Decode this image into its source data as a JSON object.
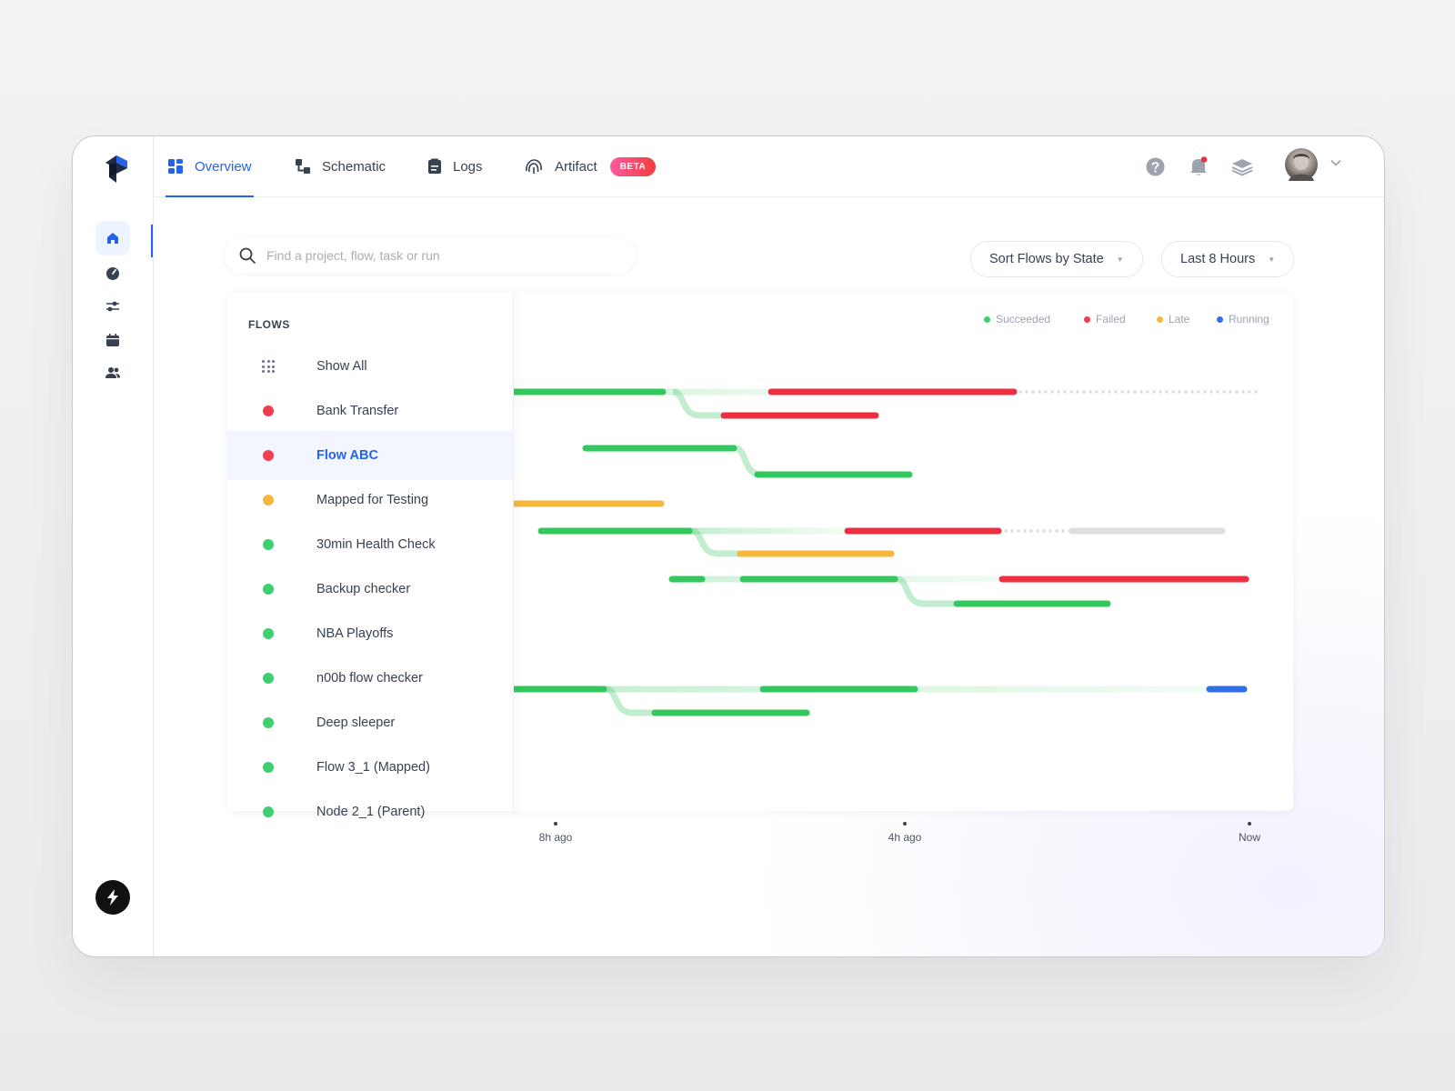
{
  "nav": {
    "tabs": [
      {
        "label": "Overview",
        "icon": "dashboard-icon",
        "active": true
      },
      {
        "label": "Schematic",
        "icon": "schematic-icon"
      },
      {
        "label": "Logs",
        "icon": "logs-icon"
      },
      {
        "label": "Artifact",
        "icon": "fingerprint-icon",
        "badge": "BETA"
      }
    ],
    "rail": [
      "home-icon",
      "speedometer-icon",
      "sliders-icon",
      "calendar-icon",
      "team-icon"
    ]
  },
  "search": {
    "placeholder": "Find a project, flow, task or run"
  },
  "filters": {
    "sort": "Sort Flows by State",
    "range": "Last 8 Hours"
  },
  "flows": {
    "title": "FLOWS",
    "items": [
      {
        "label": "Show All",
        "state": "all"
      },
      {
        "label": "Bank Transfer",
        "state": "failed"
      },
      {
        "label": "Flow ABC",
        "state": "failed",
        "selected": true
      },
      {
        "label": "Mapped for Testing",
        "state": "late"
      },
      {
        "label": "30min Health Check",
        "state": "succeeded"
      },
      {
        "label": "Backup checker",
        "state": "succeeded"
      },
      {
        "label": "NBA Playoffs",
        "state": "succeeded"
      },
      {
        "label": "n00b flow checker",
        "state": "succeeded"
      },
      {
        "label": "Deep sleeper",
        "state": "succeeded"
      },
      {
        "label": "Flow 3_1 (Mapped)",
        "state": "succeeded"
      },
      {
        "label": "Node 2_1 (Parent)",
        "state": "succeeded"
      }
    ]
  },
  "legend": [
    {
      "label": "Succeeded",
      "color": "#3ecf6e"
    },
    {
      "label": "Failed",
      "color": "#f03e4f"
    },
    {
      "label": "Late",
      "color": "#f7b63c"
    },
    {
      "label": "Running",
      "color": "#2f6fe8"
    }
  ],
  "timeline": {
    "ticks": [
      "8h ago",
      "4h ago",
      "Now"
    ],
    "colors": {
      "succeeded": "#34c75f",
      "failed": "#ee2f41",
      "late": "#f6b73c",
      "running": "#2f6fe8",
      "pending": "#dedede"
    }
  }
}
